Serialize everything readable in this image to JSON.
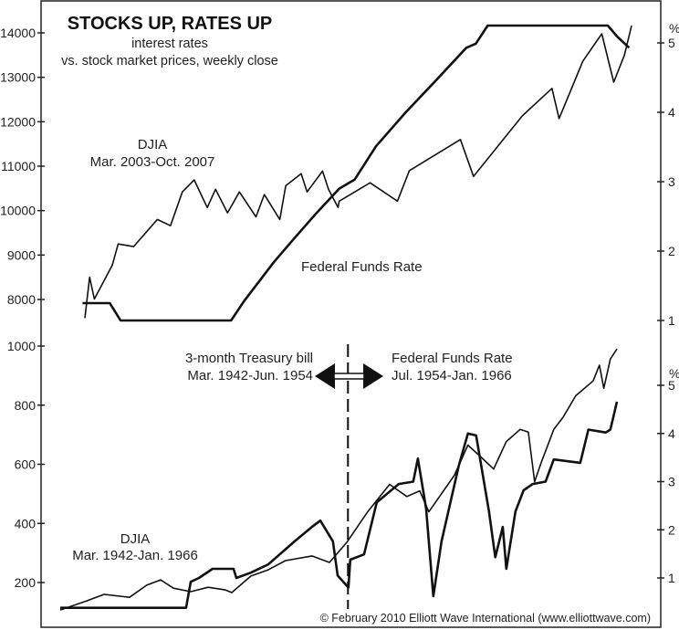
{
  "chart_data": [
    {
      "type": "line",
      "title": "STOCKS UP, RATES UP",
      "subtitle": [
        "interest rates",
        "vs. stock market prices, weekly close"
      ],
      "xlim": [
        2003.2,
        2007.8
      ],
      "left_axis": {
        "ylim": [
          7000,
          14600
        ],
        "ticks": [
          8000,
          9000,
          10000,
          11000,
          12000,
          13000,
          14000
        ]
      },
      "right_axis": {
        "unit": "%",
        "ylim": [
          0.6,
          5.6
        ],
        "ticks": [
          1,
          2,
          3,
          4,
          5
        ]
      },
      "grid": false,
      "annotations": {
        "djia_label": "DJIA",
        "djia_range": "Mar. 2003-Oct. 2007",
        "rate_label": "Federal Funds Rate"
      },
      "series": [
        {
          "name": "DJIA",
          "axis": "left",
          "style": "thin",
          "x": [
            2003.2,
            2003.24,
            2003.28,
            2003.43,
            2003.48,
            2003.61,
            2003.81,
            2003.92,
            2004.02,
            2004.12,
            2004.23,
            2004.3,
            2004.4,
            2004.5,
            2004.64,
            2004.71,
            2004.84,
            2004.89,
            2005.02,
            2005.07,
            2005.2,
            2005.25,
            2005.33,
            2005.34,
            2005.6,
            2005.83,
            2005.93,
            2006.36,
            2006.47,
            2006.88,
            2007.13,
            2007.19,
            2007.39,
            2007.55,
            2007.65,
            2007.74,
            2007.8
          ],
          "y": [
            7580,
            8500,
            8010,
            8770,
            9250,
            9190,
            9800,
            9660,
            10420,
            10690,
            10070,
            10480,
            9950,
            10420,
            9860,
            10360,
            9800,
            10560,
            10830,
            10420,
            10890,
            10480,
            10070,
            10214,
            10626,
            10214,
            10900,
            11600,
            10770,
            12130,
            12750,
            12070,
            13360,
            13980,
            12890,
            13500,
            14160
          ]
        },
        {
          "name": "Federal Funds Rate",
          "axis": "right",
          "style": "thick",
          "x": [
            2003.18,
            2003.41,
            2003.5,
            2004.43,
            2004.54,
            2004.79,
            2004.95,
            2005.15,
            2005.34,
            2005.47,
            2005.65,
            2005.9,
            2006.16,
            2006.41,
            2006.49,
            2006.59,
            2007.6,
            2007.68,
            2007.78
          ],
          "y": [
            1.25,
            1.25,
            1.0,
            1.0,
            1.28,
            1.84,
            2.16,
            2.55,
            2.9,
            3.03,
            3.51,
            4.0,
            4.47,
            4.93,
            4.99,
            5.25,
            5.25,
            5.09,
            4.93
          ]
        }
      ]
    },
    {
      "type": "line",
      "xlim": [
        1942.2,
        1966.0
      ],
      "left_axis": {
        "ylim": [
          60,
          1010
        ],
        "ticks": [
          200,
          400,
          600,
          800,
          1000
        ]
      },
      "right_axis": {
        "unit": "%",
        "ylim": [
          0.0,
          5.6
        ],
        "ticks": [
          1,
          2,
          3,
          4,
          5
        ]
      },
      "grid": false,
      "divider_year": 1954.5,
      "annotations": {
        "left_title": "3-month Treasury bill",
        "left_range": "Mar. 1942-Jun. 1954",
        "right_title": "Federal Funds Rate",
        "right_range": "Jul. 1954-Jan. 1966",
        "djia_label": "DJIA",
        "djia_range": "Mar. 1942-Jan. 1966"
      },
      "series": [
        {
          "name": "DJIA",
          "axis": "left",
          "style": "thin",
          "x": [
            1942.2,
            1943.33,
            1944.07,
            1945.16,
            1945.9,
            1946.49,
            1947.04,
            1947.78,
            1948.52,
            1949.26,
            1949.53,
            1950.35,
            1951.09,
            1951.83,
            1952.96,
            1953.71,
            1954.45,
            1955.34,
            1956.28,
            1957.02,
            1957.57,
            1957.96,
            1959.05,
            1959.63,
            1960.18,
            1960.73,
            1961.27,
            1961.86,
            1962.21,
            1962.48,
            1962.75,
            1963.3,
            1963.69,
            1964.24,
            1964.98,
            1965.25,
            1965.44,
            1965.72,
            1966.0
          ],
          "y": [
            107,
            138,
            160,
            150,
            191,
            209,
            181,
            169,
            184,
            175,
            166,
            222,
            243,
            274,
            290,
            268,
            336,
            439,
            532,
            491,
            510,
            439,
            563,
            665,
            625,
            584,
            677,
            718,
            709,
            541,
            603,
            718,
            758,
            832,
            882,
            935,
            857,
            956,
            990
          ]
        },
        {
          "name": "3-month Treasury bill / Federal Funds Rate",
          "axis": "right",
          "style": "thick",
          "x": [
            1942.2,
            1947.58,
            1947.78,
            1948.13,
            1948.71,
            1949.61,
            1949.73,
            1950.35,
            1951.09,
            1952.22,
            1952.96,
            1953.32,
            1953.86,
            1954.06,
            1954.52,
            1954.6,
            1955.19,
            1955.73,
            1956.67,
            1957.29,
            1957.49,
            1957.84,
            1958.15,
            1958.5,
            1959.24,
            1959.63,
            1959.98,
            1960.53,
            1960.8,
            1961.12,
            1961.27,
            1961.66,
            1962.01,
            1962.4,
            1962.95,
            1963.3,
            1964.43,
            1964.78,
            1965.52,
            1965.72,
            1966.0
          ],
          "y": [
            0.38,
            0.38,
            0.92,
            1.0,
            1.19,
            1.19,
            1.0,
            1.11,
            1.28,
            1.76,
            2.06,
            2.19,
            1.76,
            1.05,
            0.8,
            1.38,
            1.49,
            2.57,
            2.95,
            3.0,
            3.48,
            2.44,
            0.62,
            1.76,
            3.33,
            4.0,
            3.96,
            2.38,
            1.43,
            2.06,
            1.19,
            2.38,
            2.82,
            2.95,
            3.0,
            3.46,
            3.39,
            4.08,
            4.02,
            4.08,
            4.66
          ]
        }
      ]
    }
  ],
  "footer": {
    "copyright": "© February 2010 Elliott Wave International (www.elliottwave.com)"
  }
}
